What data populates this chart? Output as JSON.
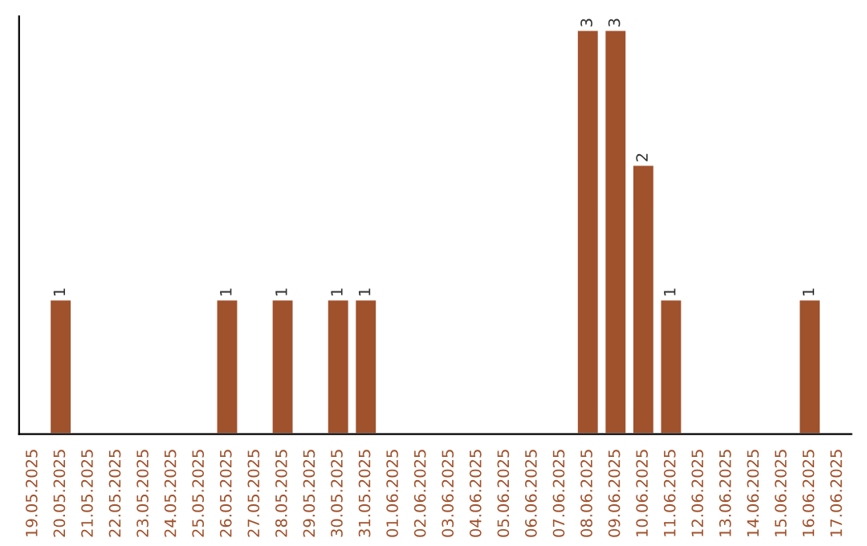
{
  "chart_data": {
    "type": "bar",
    "categories": [
      "19.05.2025",
      "20.05.2025",
      "21.05.2025",
      "22.05.2025",
      "23.05.2025",
      "24.05.2025",
      "25.05.2025",
      "26.05.2025",
      "27.05.2025",
      "28.05.2025",
      "29.05.2025",
      "30.05.2025",
      "31.05.2025",
      "01.06.2025",
      "02.06.2025",
      "03.06.2025",
      "04.06.2025",
      "05.06.2025",
      "06.06.2025",
      "07.06.2025",
      "08.06.2025",
      "09.06.2025",
      "10.06.2025",
      "11.06.2025",
      "12.06.2025",
      "13.06.2025",
      "14.06.2025",
      "15.06.2025",
      "16.06.2025",
      "17.06.2025"
    ],
    "values": [
      null,
      1,
      null,
      null,
      null,
      null,
      null,
      1,
      null,
      1,
      null,
      1,
      1,
      null,
      null,
      null,
      null,
      null,
      null,
      null,
      3,
      3,
      2,
      1,
      null,
      null,
      null,
      null,
      1,
      null
    ],
    "color": "#a0522d",
    "ylim": [
      0,
      3.1
    ],
    "data_labels": true,
    "tick_labels": "x",
    "grid": false,
    "legend": false
  }
}
